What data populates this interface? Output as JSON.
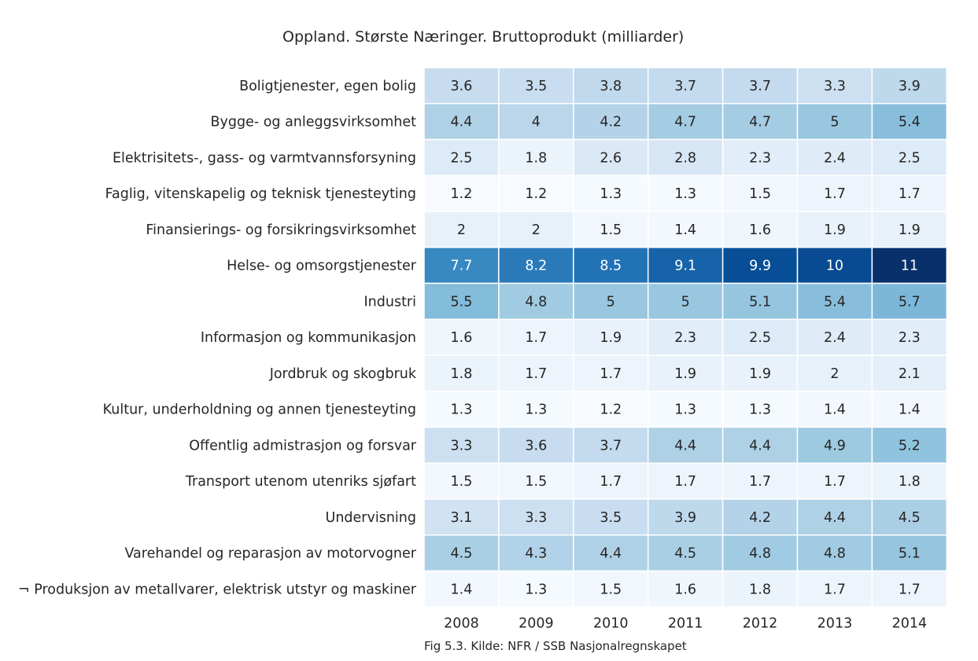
{
  "chart_data": {
    "type": "heatmap",
    "title": "Oppland. Største Næringer. Bruttoprodukt (milliarder)",
    "caption": "Fig 5.3. Kilde: NFR / SSB Nasjonalregnskapet",
    "x": [
      "2008",
      "2009",
      "2010",
      "2011",
      "2012",
      "2013",
      "2014"
    ],
    "y": [
      "Boligtjenester, egen bolig",
      "Bygge- og anleggsvirksomhet",
      "Elektrisitets-, gass- og varmtvannsforsyning",
      "Faglig, vitenskapelig og teknisk tjenesteyting",
      "Finansierings- og forsikringsvirksomhet",
      "Helse- og omsorgstjenester",
      "Industri",
      "Informasjon og kommunikasjon",
      "Jordbruk og skogbruk",
      "Kultur, underholdning og annen tjenesteyting",
      "Offentlig admistrasjon og forsvar",
      "Transport utenom utenriks sjøfart",
      "Undervisning",
      "Varehandel og reparasjon av motorvogner",
      "¬ Produksjon av metallvarer, elektrisk utstyr og maskiner"
    ],
    "values": [
      [
        "3.6",
        "3.5",
        "3.8",
        "3.7",
        "3.7",
        "3.3",
        "3.9"
      ],
      [
        "4.4",
        "4",
        "4.2",
        "4.7",
        "4.7",
        "5",
        "5.4"
      ],
      [
        "2.5",
        "1.8",
        "2.6",
        "2.8",
        "2.3",
        "2.4",
        "2.5"
      ],
      [
        "1.2",
        "1.2",
        "1.3",
        "1.3",
        "1.5",
        "1.7",
        "1.7"
      ],
      [
        "2",
        "2",
        "1.5",
        "1.4",
        "1.6",
        "1.9",
        "1.9"
      ],
      [
        "7.7",
        "8.2",
        "8.5",
        "9.1",
        "9.9",
        "10",
        "11"
      ],
      [
        "5.5",
        "4.8",
        "5",
        "5",
        "5.1",
        "5.4",
        "5.7"
      ],
      [
        "1.6",
        "1.7",
        "1.9",
        "2.3",
        "2.5",
        "2.4",
        "2.3"
      ],
      [
        "1.8",
        "1.7",
        "1.7",
        "1.9",
        "1.9",
        "2",
        "2.1"
      ],
      [
        "1.3",
        "1.3",
        "1.2",
        "1.3",
        "1.3",
        "1.4",
        "1.4"
      ],
      [
        "3.3",
        "3.6",
        "3.7",
        "4.4",
        "4.4",
        "4.9",
        "5.2"
      ],
      [
        "1.5",
        "1.5",
        "1.7",
        "1.7",
        "1.7",
        "1.7",
        "1.8"
      ],
      [
        "3.1",
        "3.3",
        "3.5",
        "3.9",
        "4.2",
        "4.4",
        "4.5"
      ],
      [
        "4.5",
        "4.3",
        "4.4",
        "4.5",
        "4.8",
        "4.8",
        "5.1"
      ],
      [
        "1.4",
        "1.3",
        "1.5",
        "1.6",
        "1.8",
        "1.7",
        "1.7"
      ]
    ],
    "colormap": "Blues",
    "color_range": [
      1.2,
      11
    ],
    "grid": false,
    "legend": "none"
  }
}
